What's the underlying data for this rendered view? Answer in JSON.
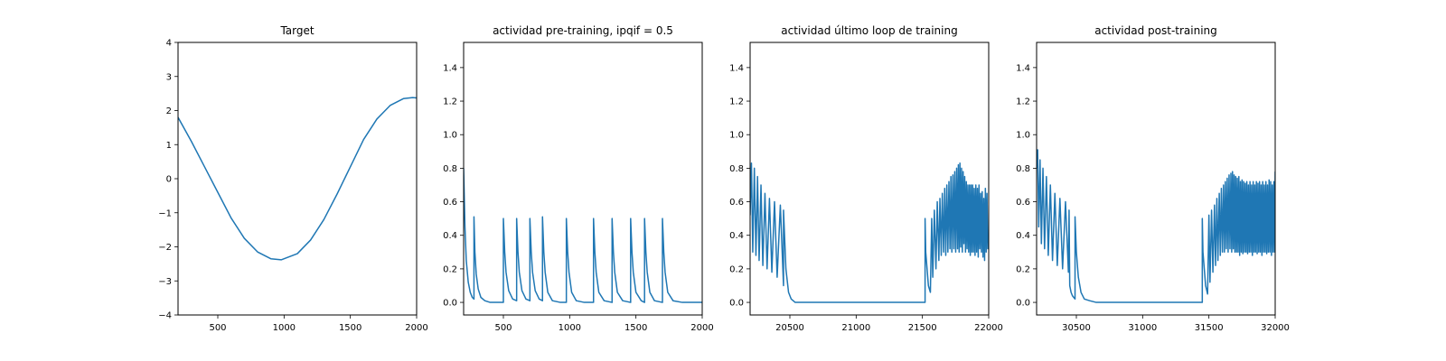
{
  "chart_data": [
    {
      "type": "line",
      "title": "Target",
      "xlabel": "",
      "ylabel": "",
      "xlim": [
        200,
        2000
      ],
      "ylim": [
        -4,
        4
      ],
      "xticks": [
        500,
        1000,
        1500,
        2000
      ],
      "yticks": [
        -4,
        -3,
        -2,
        -1,
        0,
        1,
        2,
        3,
        4
      ],
      "xtick_labels": [
        "500",
        "1000",
        "1500",
        "2000"
      ],
      "ytick_labels": [
        "−4",
        "−3",
        "−2",
        "−1",
        "0",
        "1",
        "2",
        "3",
        "4"
      ],
      "grid": false,
      "legend": "none",
      "series": [
        {
          "color": "#1f77b4",
          "x": [
            200,
            300,
            400,
            500,
            600,
            700,
            800,
            900,
            980,
            1100,
            1200,
            1300,
            1400,
            1500,
            1600,
            1700,
            1800,
            1900,
            1970,
            2000
          ],
          "y": [
            1.8,
            1.1,
            0.35,
            -0.4,
            -1.15,
            -1.75,
            -2.15,
            -2.35,
            -2.38,
            -2.2,
            -1.8,
            -1.2,
            -0.45,
            0.35,
            1.15,
            1.75,
            2.15,
            2.35,
            2.38,
            2.37
          ]
        }
      ]
    },
    {
      "type": "line",
      "title": "actividad pre-training, ipqif = 0.5",
      "xlabel": "",
      "ylabel": "",
      "xlim": [
        200,
        2000
      ],
      "ylim": [
        -0.075,
        1.55
      ],
      "xticks": [
        500,
        1000,
        1500,
        2000
      ],
      "yticks": [
        0.0,
        0.2,
        0.4,
        0.6,
        0.8,
        1.0,
        1.2,
        1.4
      ],
      "xtick_labels": [
        "500",
        "1000",
        "1500",
        "2000"
      ],
      "ytick_labels": [
        "0.0",
        "0.2",
        "0.4",
        "0.6",
        "0.8",
        "1.0",
        "1.2",
        "1.4"
      ],
      "grid": false,
      "legend": "none",
      "series": [
        {
          "color": "#1f77b4",
          "x": [
            200,
            210,
            220,
            235,
            250,
            265,
            278,
            278,
            285,
            295,
            310,
            330,
            360,
            400,
            500,
            500,
            510,
            520,
            540,
            570,
            600,
            600,
            610,
            620,
            640,
            670,
            700,
            700,
            710,
            720,
            740,
            770,
            795,
            795,
            805,
            815,
            835,
            870,
            930,
            975,
            975,
            985,
            995,
            1015,
            1050,
            1110,
            1180,
            1180,
            1190,
            1200,
            1220,
            1260,
            1320,
            1320,
            1330,
            1340,
            1360,
            1400,
            1460,
            1460,
            1470,
            1480,
            1500,
            1540,
            1565,
            1565,
            1575,
            1585,
            1605,
            1640,
            1700,
            1700,
            1710,
            1720,
            1740,
            1780,
            1850,
            2000
          ],
          "y": [
            0.8,
            0.45,
            0.25,
            0.12,
            0.06,
            0.03,
            0.02,
            0.51,
            0.3,
            0.17,
            0.08,
            0.03,
            0.01,
            0.0,
            0.0,
            0.5,
            0.3,
            0.18,
            0.07,
            0.02,
            0.01,
            0.5,
            0.3,
            0.18,
            0.07,
            0.02,
            0.01,
            0.5,
            0.3,
            0.18,
            0.07,
            0.02,
            0.01,
            0.51,
            0.3,
            0.18,
            0.06,
            0.01,
            0.0,
            0.0,
            0.5,
            0.3,
            0.18,
            0.06,
            0.01,
            0.0,
            0.0,
            0.5,
            0.3,
            0.18,
            0.06,
            0.01,
            0.0,
            0.5,
            0.3,
            0.18,
            0.06,
            0.01,
            0.0,
            0.5,
            0.3,
            0.18,
            0.06,
            0.01,
            0.0,
            0.5,
            0.3,
            0.18,
            0.06,
            0.01,
            0.0,
            0.5,
            0.3,
            0.18,
            0.06,
            0.01,
            0.0,
            0.0
          ]
        }
      ]
    },
    {
      "type": "line",
      "title": "actividad último loop de training",
      "xlabel": "",
      "ylabel": "",
      "xlim": [
        20200,
        22000
      ],
      "ylim": [
        -0.075,
        1.55
      ],
      "xticks": [
        20500,
        21000,
        21500,
        22000
      ],
      "yticks": [
        0.0,
        0.2,
        0.4,
        0.6,
        0.8,
        1.0,
        1.2,
        1.4
      ],
      "xtick_labels": [
        "20500",
        "21000",
        "21500",
        "22000"
      ],
      "ytick_labels": [
        "0.0",
        "0.2",
        "0.4",
        "0.6",
        "0.8",
        "1.0",
        "1.2",
        "1.4"
      ],
      "grid": false,
      "legend": "none",
      "series": [
        {
          "color": "#1f77b4",
          "x": [
            20200,
            20210,
            20220,
            20232,
            20244,
            20256,
            20268,
            20282,
            20296,
            20312,
            20328,
            20346,
            20364,
            20384,
            20404,
            20428,
            20452,
            20452,
            20470,
            20490,
            20510,
            20540,
            20580,
            20620,
            21520,
            21520,
            21525,
            21535,
            21545,
            21560,
            21570,
            21578,
            21590,
            21602,
            21612,
            21624,
            21632,
            21642,
            21650,
            21660,
            21668,
            21676,
            21684,
            21692,
            21700,
            21708,
            21715,
            21722,
            21730,
            21737,
            21744,
            21751,
            21758,
            21765,
            21771,
            21777,
            21783,
            21789,
            21795,
            21801,
            21807,
            21813,
            21819,
            21825,
            21831,
            21837,
            21843,
            21849,
            21855,
            21861,
            21867,
            21873,
            21879,
            21885,
            21891,
            21897,
            21903,
            21909,
            21915,
            21921,
            21927,
            21933,
            21939,
            21945,
            21951,
            21957,
            21963,
            21969,
            21975,
            21981,
            21987,
            21993,
            22000
          ],
          "y": [
            0.52,
            0.83,
            0.3,
            0.8,
            0.28,
            0.75,
            0.25,
            0.7,
            0.22,
            0.65,
            0.2,
            0.62,
            0.18,
            0.6,
            0.15,
            0.58,
            0.1,
            0.55,
            0.2,
            0.06,
            0.02,
            0.0,
            0.0,
            0.0,
            0.0,
            0.5,
            0.3,
            0.2,
            0.1,
            0.06,
            0.5,
            0.15,
            0.55,
            0.2,
            0.6,
            0.25,
            0.62,
            0.28,
            0.65,
            0.3,
            0.68,
            0.28,
            0.7,
            0.3,
            0.72,
            0.32,
            0.75,
            0.3,
            0.76,
            0.32,
            0.78,
            0.3,
            0.8,
            0.32,
            0.82,
            0.3,
            0.83,
            0.33,
            0.8,
            0.3,
            0.78,
            0.35,
            0.75,
            0.3,
            0.72,
            0.32,
            0.7,
            0.3,
            0.7,
            0.28,
            0.7,
            0.3,
            0.7,
            0.3,
            0.68,
            0.28,
            0.7,
            0.3,
            0.68,
            0.27,
            0.7,
            0.32,
            0.65,
            0.3,
            0.66,
            0.27,
            0.62,
            0.25,
            0.68,
            0.3,
            0.65,
            0.32,
            0.38
          ]
        }
      ]
    },
    {
      "type": "line",
      "title": "actividad post-training",
      "xlabel": "",
      "ylabel": "",
      "xlim": [
        30200,
        32000
      ],
      "ylim": [
        -0.075,
        1.55
      ],
      "xticks": [
        30500,
        31000,
        31500,
        32000
      ],
      "yticks": [
        0.0,
        0.2,
        0.4,
        0.6,
        0.8,
        1.0,
        1.2,
        1.4
      ],
      "xtick_labels": [
        "30500",
        "31000",
        "31500",
        "32000"
      ],
      "ytick_labels": [
        "0.0",
        "0.2",
        "0.4",
        "0.6",
        "0.8",
        "1.0",
        "1.2",
        "1.4"
      ],
      "grid": false,
      "legend": "none",
      "series": [
        {
          "color": "#1f77b4",
          "x": [
            30200,
            30208,
            30216,
            30226,
            30236,
            30248,
            30260,
            30274,
            30288,
            30304,
            30320,
            30338,
            30356,
            30376,
            30396,
            30418,
            30440,
            30445,
            30450,
            30460,
            30470,
            30480,
            30490,
            30490,
            30500,
            30515,
            30535,
            30560,
            30600,
            30650,
            31450,
            31450,
            31455,
            31465,
            31475,
            31490,
            31500,
            31508,
            31520,
            31530,
            31542,
            31550,
            31560,
            31568,
            31578,
            31586,
            31594,
            31602,
            31610,
            31617,
            31624,
            31631,
            31638,
            31645,
            31652,
            31659,
            31666,
            31672,
            31678,
            31684,
            31690,
            31696,
            31702,
            31708,
            31714,
            31720,
            31726,
            31732,
            31738,
            31744,
            31750,
            31756,
            31762,
            31768,
            31774,
            31780,
            31786,
            31792,
            31798,
            31804,
            31810,
            31816,
            31822,
            31828,
            31834,
            31840,
            31846,
            31852,
            31858,
            31864,
            31870,
            31876,
            31882,
            31888,
            31894,
            31900,
            31906,
            31912,
            31918,
            31924,
            31930,
            31936,
            31942,
            31948,
            31954,
            31960,
            31966,
            31972,
            31978,
            31984,
            31990,
            31996,
            32000
          ],
          "y": [
            0.8,
            0.91,
            0.45,
            0.85,
            0.35,
            0.8,
            0.32,
            0.75,
            0.28,
            0.7,
            0.25,
            0.65,
            0.22,
            0.62,
            0.2,
            0.6,
            0.18,
            0.55,
            0.1,
            0.06,
            0.04,
            0.03,
            0.02,
            0.51,
            0.3,
            0.15,
            0.06,
            0.02,
            0.01,
            0.0,
            0.0,
            0.5,
            0.3,
            0.2,
            0.1,
            0.05,
            0.52,
            0.12,
            0.55,
            0.18,
            0.58,
            0.22,
            0.62,
            0.25,
            0.65,
            0.28,
            0.68,
            0.3,
            0.7,
            0.3,
            0.72,
            0.32,
            0.74,
            0.3,
            0.76,
            0.32,
            0.77,
            0.3,
            0.78,
            0.32,
            0.76,
            0.3,
            0.75,
            0.3,
            0.74,
            0.3,
            0.75,
            0.28,
            0.72,
            0.3,
            0.73,
            0.29,
            0.72,
            0.3,
            0.71,
            0.3,
            0.72,
            0.29,
            0.7,
            0.3,
            0.72,
            0.3,
            0.7,
            0.28,
            0.72,
            0.3,
            0.7,
            0.3,
            0.72,
            0.29,
            0.71,
            0.3,
            0.72,
            0.3,
            0.7,
            0.28,
            0.72,
            0.3,
            0.7,
            0.3,
            0.72,
            0.29,
            0.7,
            0.3,
            0.73,
            0.3,
            0.72,
            0.28,
            0.7,
            0.3,
            0.72,
            0.3,
            0.78
          ]
        }
      ]
    }
  ]
}
